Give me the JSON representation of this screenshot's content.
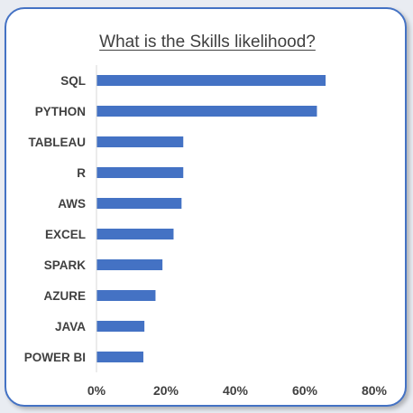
{
  "chart_data": {
    "type": "bar",
    "orientation": "horizontal",
    "title": "What is the Skills likelihood?",
    "categories": [
      "SQL",
      "PYTHON",
      "TABLEAU",
      "R",
      "AWS",
      "EXCEL",
      "SPARK",
      "AZURE",
      "JAVA",
      "POWER BI"
    ],
    "values": [
      0.66,
      0.635,
      0.25,
      0.25,
      0.245,
      0.222,
      0.19,
      0.17,
      0.138,
      0.135
    ],
    "xlabel": "",
    "ylabel": "",
    "xlim": [
      0,
      0.8
    ],
    "x_ticks": [
      0,
      0.2,
      0.4,
      0.6,
      0.8
    ],
    "x_tick_labels": [
      "0%",
      "20%",
      "40%",
      "60%",
      "80%"
    ],
    "grid": false,
    "legend": "none",
    "bar_color": "#4472c4",
    "axis_color": "#d9d9d9"
  }
}
